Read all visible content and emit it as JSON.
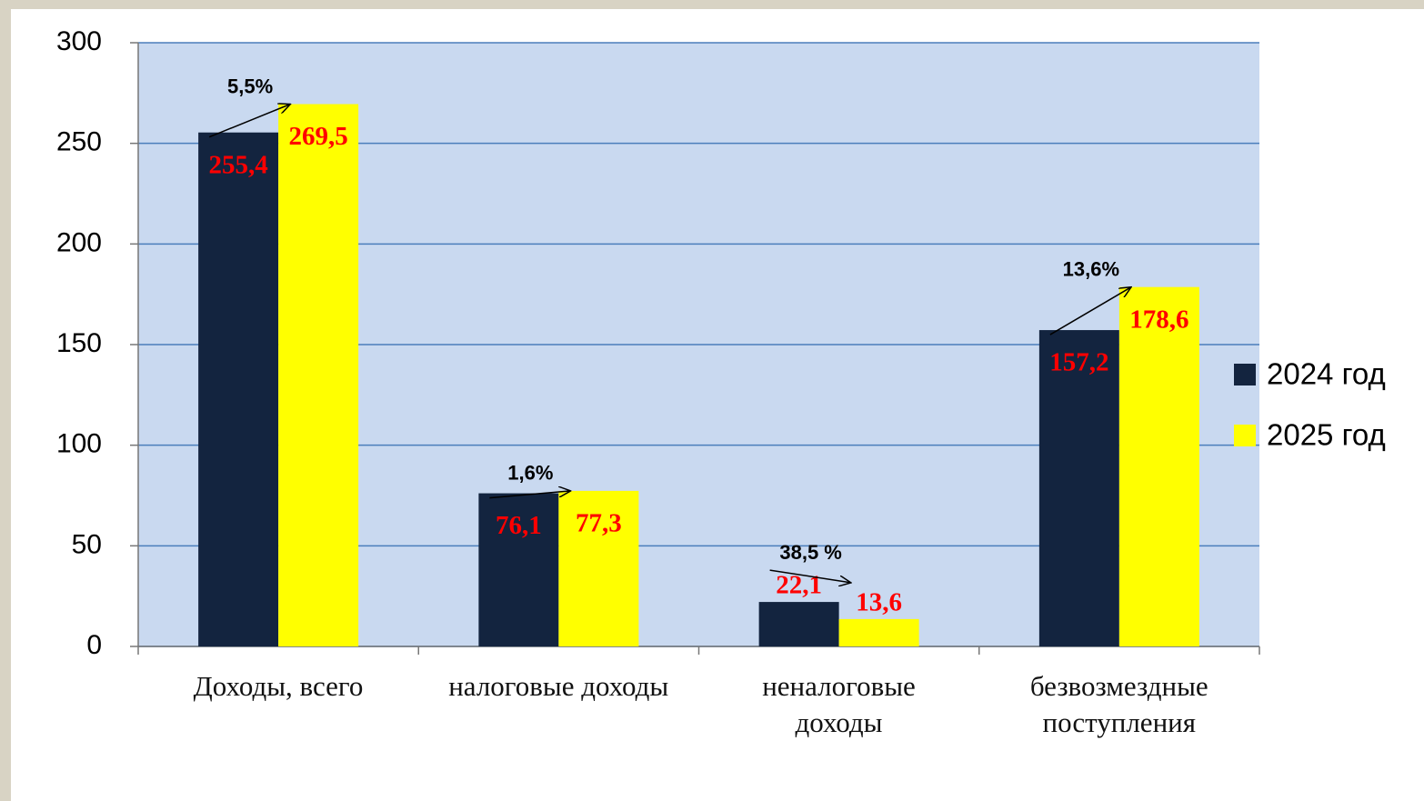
{
  "chart_data": {
    "type": "bar",
    "categories": [
      "Доходы, всего",
      "налоговые доходы",
      "неналоговые\nдоходы",
      "безвозмездные\nпоступления"
    ],
    "series": [
      {
        "name": "2024 год",
        "color": "#13243f",
        "values": [
          255.4,
          76.1,
          22.1,
          157.2
        ],
        "value_labels": [
          "255,4",
          "76,1",
          "22,1",
          "157,2"
        ]
      },
      {
        "name": "2025 год",
        "color": "#ffff00",
        "values": [
          269.5,
          77.3,
          13.6,
          178.6
        ],
        "value_labels": [
          "269,5",
          "77,3",
          "13,6",
          "178,6"
        ]
      }
    ],
    "annotations": [
      "5,5%",
      "1,6%",
      "38,5 %",
      "13,6%"
    ],
    "ylim": [
      0,
      300
    ],
    "yticks": [
      0,
      50,
      100,
      150,
      200,
      250,
      300
    ],
    "grid": true,
    "legend": "right"
  }
}
